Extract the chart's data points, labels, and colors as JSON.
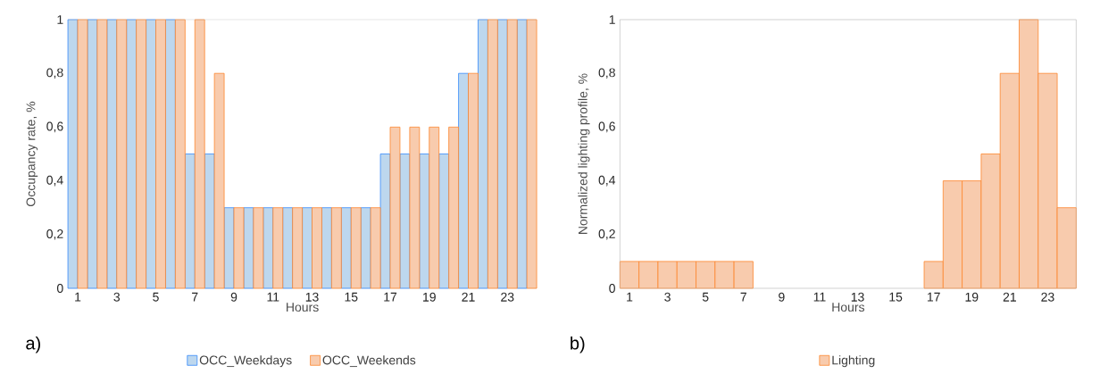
{
  "chart_data": [
    {
      "type": "bar",
      "xlabel": "Hours",
      "ylabel": "Occupancy rate, %",
      "categories": [
        "1",
        null,
        "3",
        null,
        "5",
        null,
        "7",
        null,
        "9",
        null,
        "11",
        null,
        "13",
        null,
        "15",
        null,
        "17",
        null,
        "19",
        null,
        "21",
        null,
        "23",
        null
      ],
      "series": [
        {
          "name": "OCC_Weekdays",
          "color": "#bdd7ee",
          "values": [
            1,
            1,
            1,
            1,
            1,
            1,
            0.5,
            0.5,
            0.3,
            0.3,
            0.3,
            0.3,
            0.3,
            0.3,
            0.3,
            0.3,
            0.5,
            0.5,
            0.5,
            0.5,
            0.8,
            1,
            1,
            1
          ]
        },
        {
          "name": "OCC_Weekends",
          "color": "#f8cbad",
          "values": [
            1,
            1,
            1,
            1,
            1,
            1,
            1,
            0.8,
            0.3,
            0.3,
            0.3,
            0.3,
            0.3,
            0.3,
            0.3,
            0.3,
            0.6,
            0.6,
            0.6,
            0.6,
            0.8,
            1,
            1,
            1
          ]
        }
      ],
      "ylim": [
        0,
        1
      ],
      "yticks": [
        0,
        {
          "value": 0.2,
          "label": "0,2"
        },
        {
          "value": 0.4,
          "label": "0,4"
        },
        {
          "value": 0.6,
          "label": "0,6"
        },
        {
          "value": 0.8,
          "label": "0,8"
        },
        1
      ],
      "legend": "bottom",
      "annotations": [
        "a)"
      ]
    },
    {
      "type": "bar",
      "xlabel": "Hours",
      "ylabel": "Normalized lighting profile, %",
      "categories": [
        "1",
        null,
        "3",
        null,
        "5",
        null,
        "7",
        null,
        "9",
        null,
        "11",
        null,
        "13",
        null,
        "15",
        null,
        "17",
        null,
        "19",
        null,
        "21",
        null,
        "23",
        null
      ],
      "series": [
        {
          "name": "Lighting",
          "color": "#f8cbad",
          "values": [
            0.1,
            0.1,
            0.1,
            0.1,
            0.1,
            0.1,
            0.1,
            0,
            0,
            0,
            0,
            0,
            0,
            0,
            0,
            0,
            0.1,
            0.4,
            0.4,
            0.5,
            0.8,
            1,
            0.8,
            0.3
          ]
        }
      ],
      "ylim": [
        0,
        1
      ],
      "yticks": [
        0,
        {
          "value": 0.2,
          "label": "0,2"
        },
        {
          "value": 0.4,
          "label": "0,4"
        },
        {
          "value": 0.6,
          "label": "0,6"
        },
        {
          "value": 0.8,
          "label": "0,8"
        },
        1
      ],
      "legend": "bottom",
      "annotations": [
        "b)"
      ]
    }
  ]
}
